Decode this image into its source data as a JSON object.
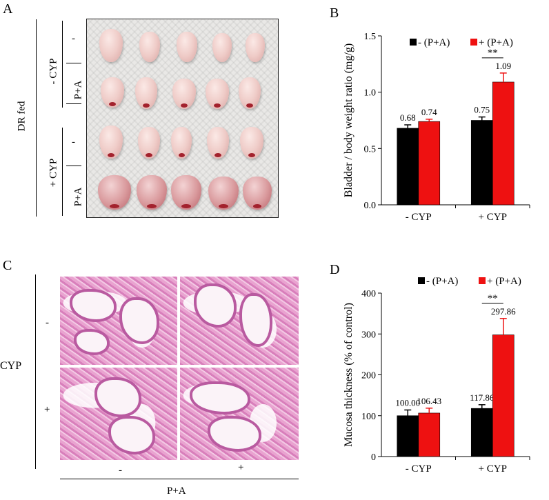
{
  "panels": {
    "A": {
      "letter": "A",
      "group_label": "DR fed",
      "cyp_minus": "- CYP",
      "cyp_plus": "+ CYP",
      "row_labels": [
        "-",
        "P+A",
        "-",
        "P+A"
      ]
    },
    "C": {
      "letter": "C",
      "y_group": "CYP",
      "row_labels": [
        "-",
        "+"
      ],
      "col_labels": [
        "-",
        "+"
      ],
      "x_group": "P+A"
    },
    "B": {
      "letter": "B"
    },
    "D": {
      "letter": "D"
    }
  },
  "colors": {
    "minus": "#000000",
    "plus": "#ee1111"
  },
  "chart_data": [
    {
      "id": "B",
      "type": "bar",
      "ylabel": "Bladder / body weight ratio (mg/g)",
      "categories": [
        "- CYP",
        "+ CYP"
      ],
      "series": [
        {
          "name": "- (P+A)",
          "values": [
            0.68,
            0.75
          ],
          "errors": [
            0.03,
            0.03
          ],
          "labels": [
            "0.68",
            "0.75"
          ]
        },
        {
          "name": "+ (P+A)",
          "values": [
            0.74,
            1.09
          ],
          "errors": [
            0.02,
            0.08
          ],
          "labels": [
            "0.74",
            "1.09"
          ]
        }
      ],
      "ylim": [
        0,
        1.5
      ],
      "yticks": [
        "0.0",
        "0.5",
        "1.0",
        "1.5"
      ],
      "significance": {
        "category": 1,
        "text": "**"
      }
    },
    {
      "id": "D",
      "type": "bar",
      "ylabel": "Mucosa thickness (% of control)",
      "categories": [
        "- CYP",
        "+ CYP"
      ],
      "series": [
        {
          "name": "- (P+A)",
          "values": [
            100.0,
            117.86
          ],
          "errors": [
            14,
            9
          ],
          "labels": [
            "100.00",
            "117.86"
          ]
        },
        {
          "name": "+ (P+A)",
          "values": [
            106.43,
            297.86
          ],
          "errors": [
            12,
            40
          ],
          "labels": [
            "106.43",
            "297.86"
          ]
        }
      ],
      "ylim": [
        0,
        400
      ],
      "yticks": [
        "0",
        "100",
        "200",
        "300",
        "400"
      ],
      "significance": {
        "category": 1,
        "text": "**"
      }
    }
  ]
}
